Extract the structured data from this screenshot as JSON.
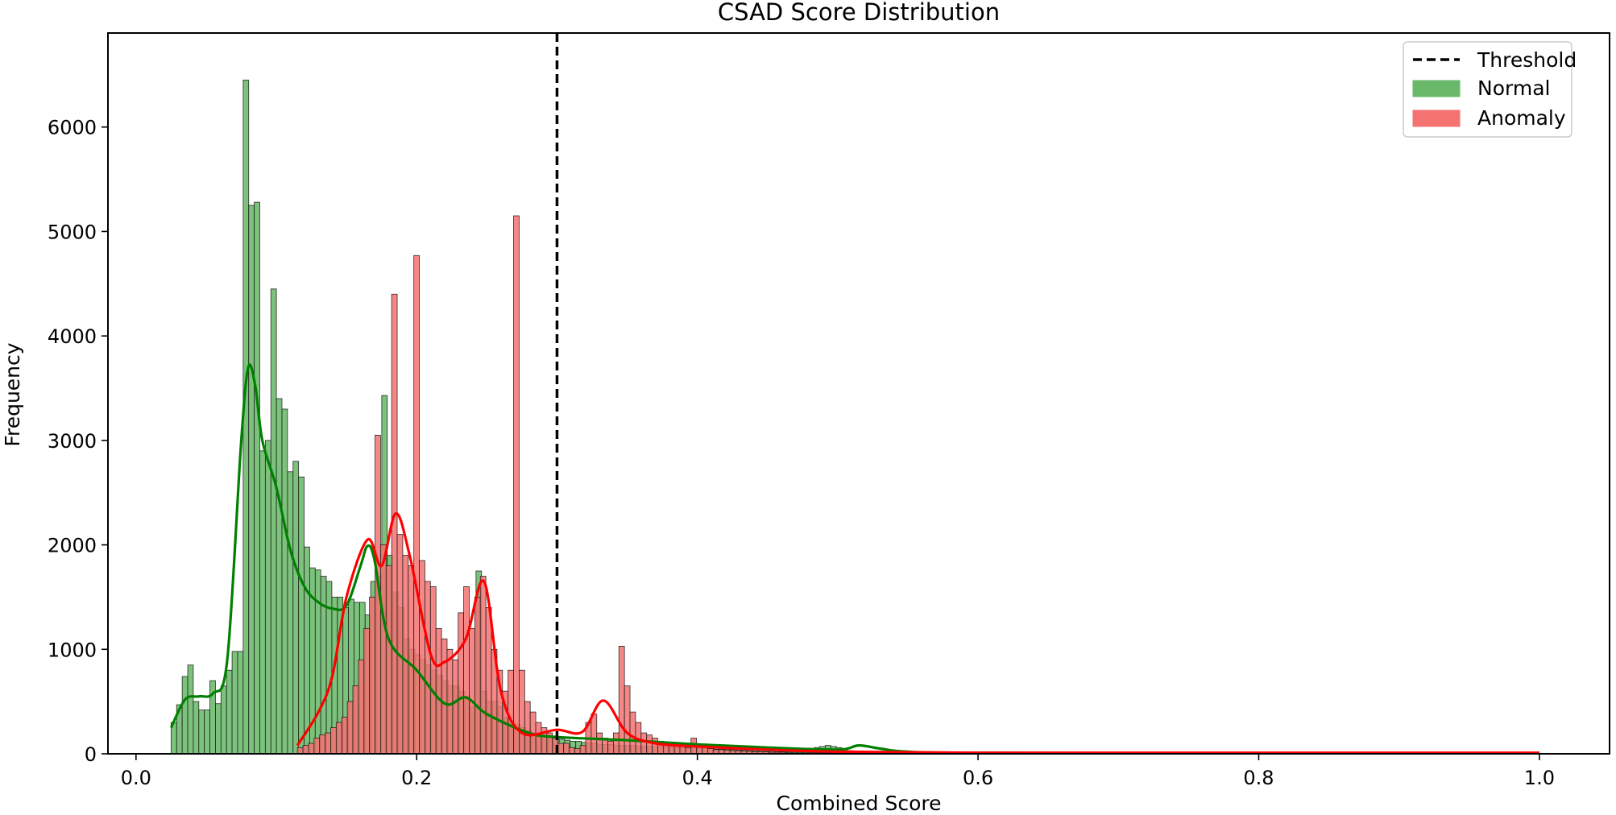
{
  "chart_data": {
    "type": "bar",
    "title": "CSAD Score Distribution",
    "xlabel": "Combined Score",
    "ylabel": "Frequency",
    "xlim": [
      -0.02,
      1.05
    ],
    "ylim": [
      0,
      6900
    ],
    "x_ticks": [
      0.0,
      0.2,
      0.4,
      0.6,
      0.8,
      1.0
    ],
    "x_tick_labels": [
      "0.0",
      "0.2",
      "0.4",
      "0.6",
      "0.8",
      "1.0"
    ],
    "y_ticks": [
      0,
      1000,
      2000,
      3000,
      4000,
      5000,
      6000
    ],
    "y_tick_labels": [
      "0",
      "1000",
      "2000",
      "3000",
      "4000",
      "5000",
      "6000"
    ],
    "grid": false,
    "legend_position": "top-right",
    "threshold": {
      "name": "Threshold",
      "x": 0.3,
      "color": "#000000",
      "style": "dashed"
    },
    "series": [
      {
        "name": "Normal",
        "color": "#008000",
        "fill": "#6ab96a",
        "bin_start": 0.025,
        "bin_width": 0.00395,
        "counts": [
          300,
          470,
          740,
          850,
          500,
          420,
          420,
          700,
          480,
          650,
          800,
          980,
          980,
          6450,
          5250,
          5280,
          2900,
          3000,
          4450,
          3400,
          3300,
          2700,
          2800,
          2650,
          1980,
          1780,
          1760,
          1700,
          1650,
          1500,
          1500,
          1400,
          1480,
          1450,
          1450,
          1330,
          1650,
          1700,
          3430,
          1900,
          1550,
          1400,
          1100,
          1000,
          950,
          900,
          850,
          800,
          750,
          700,
          650,
          650,
          600,
          550,
          450,
          1750,
          600,
          500,
          500,
          450,
          350,
          300,
          280,
          250,
          220,
          200,
          180,
          170,
          160,
          150,
          140,
          130,
          120,
          120,
          110,
          100,
          100,
          90,
          90,
          90,
          80,
          80,
          80,
          80,
          75,
          70,
          70,
          70,
          70,
          65,
          60,
          60,
          60,
          55,
          55,
          50,
          50,
          50,
          45,
          45,
          40,
          40,
          35,
          35,
          30,
          30,
          30,
          25,
          25,
          20,
          20,
          20,
          20,
          20,
          30,
          40,
          60,
          70,
          80,
          70,
          60,
          40,
          30,
          20,
          15,
          10
        ],
        "kde_x": [
          0.025,
          0.035,
          0.045,
          0.055,
          0.065,
          0.075,
          0.08,
          0.085,
          0.09,
          0.1,
          0.11,
          0.12,
          0.13,
          0.14,
          0.15,
          0.16,
          0.165,
          0.17,
          0.18,
          0.2,
          0.22,
          0.235,
          0.25,
          0.28,
          0.3,
          0.35,
          0.4,
          0.45,
          0.5,
          0.515,
          0.53,
          0.55,
          0.6,
          0.8,
          1.0
        ],
        "kde_y": [
          250,
          520,
          550,
          580,
          900,
          3000,
          3700,
          3520,
          3000,
          2550,
          1950,
          1600,
          1450,
          1390,
          1420,
          1800,
          1990,
          1850,
          1100,
          800,
          480,
          540,
          380,
          200,
          160,
          130,
          90,
          60,
          40,
          80,
          50,
          20,
          10,
          5,
          5
        ]
      },
      {
        "name": "Anomaly",
        "color": "#ff0000",
        "fill": "#f47272",
        "bin_start": 0.115,
        "bin_width": 0.00395,
        "counts": [
          60,
          80,
          100,
          150,
          180,
          200,
          250,
          300,
          350,
          500,
          650,
          900,
          1200,
          1500,
          3050,
          2000,
          1800,
          4400,
          2100,
          1900,
          1800,
          4770,
          1850,
          1650,
          1600,
          1200,
          1100,
          1000,
          900,
          1350,
          1600,
          1200,
          1500,
          1700,
          1400,
          1000,
          800,
          600,
          800,
          5150,
          800,
          500,
          400,
          300,
          250,
          200,
          150,
          100,
          100,
          60,
          50,
          80,
          300,
          380,
          200,
          150,
          120,
          200,
          1030,
          650,
          400,
          300,
          200,
          180,
          150,
          120,
          100,
          90,
          80,
          70,
          60,
          150,
          70,
          60,
          50,
          40,
          40,
          35,
          30,
          30,
          25,
          25,
          20,
          20,
          20,
          15,
          15,
          15,
          10,
          10,
          10,
          10,
          10,
          10,
          10,
          10,
          10,
          10,
          10,
          10,
          10,
          10,
          10,
          10,
          10,
          10,
          10,
          10,
          10,
          10,
          10,
          10
        ],
        "kde_x": [
          0.115,
          0.13,
          0.14,
          0.15,
          0.165,
          0.175,
          0.185,
          0.195,
          0.21,
          0.22,
          0.235,
          0.248,
          0.26,
          0.275,
          0.3,
          0.318,
          0.333,
          0.35,
          0.37,
          0.4,
          0.45,
          0.5,
          0.6,
          0.8,
          1.0
        ],
        "kde_y": [
          80,
          400,
          750,
          1500,
          2050,
          1800,
          2300,
          1900,
          950,
          880,
          1100,
          1650,
          600,
          200,
          230,
          210,
          510,
          200,
          100,
          70,
          40,
          20,
          10,
          10,
          10
        ]
      }
    ]
  }
}
